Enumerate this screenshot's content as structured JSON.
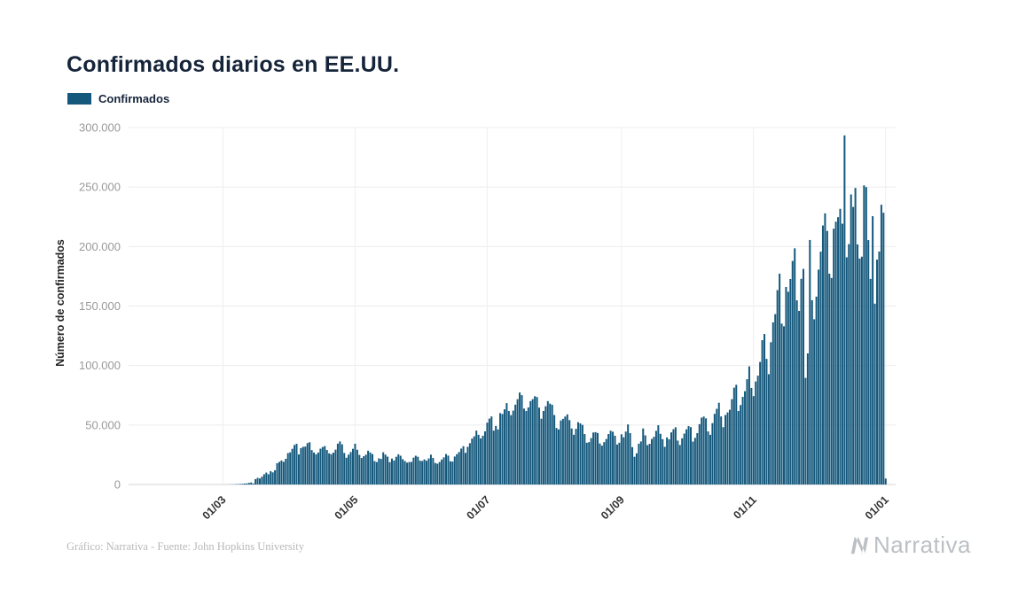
{
  "page": {
    "background": "#ffffff"
  },
  "header": {
    "title": "Confirmados diarios en EE.UU."
  },
  "legend": {
    "label": "Confirmados",
    "color": "#14587c"
  },
  "footer": {
    "credit": "Gráfico: Narrativa - Fuente: John Hopkins University",
    "brand": "Narrativa"
  },
  "chart_data": {
    "type": "bar",
    "title": "Confirmados diarios en EE.UU.",
    "xlabel": "",
    "ylabel": "Número de confirmados",
    "series_name": "Confirmados",
    "bar_color": "#14587c",
    "grid": true,
    "legend_position": "top-left",
    "ylim": [
      0,
      300000
    ],
    "y_ticks": [
      0,
      50000,
      100000,
      150000,
      200000,
      250000,
      300000
    ],
    "y_tick_labels": [
      "0",
      "50.000",
      "100.000",
      "150.000",
      "200.000",
      "250.000",
      "300.000"
    ],
    "x_ticks": [
      {
        "label": "01/03",
        "index": 39
      },
      {
        "label": "01/05",
        "index": 100
      },
      {
        "label": "01/07",
        "index": 161
      },
      {
        "label": "01/09",
        "index": 223
      },
      {
        "label": "01/11",
        "index": 284
      },
      {
        "label": "01/01",
        "index": 345
      }
    ],
    "values": [
      1,
      0,
      1,
      0,
      3,
      0,
      0,
      0,
      2,
      1,
      1,
      0,
      2,
      1,
      0,
      1,
      1,
      0,
      3,
      2,
      0,
      1,
      2,
      1,
      0,
      2,
      1,
      3,
      0,
      1,
      2,
      6,
      8,
      10,
      14,
      18,
      6,
      4,
      21,
      24,
      20,
      31,
      74,
      107,
      163,
      290,
      330,
      430,
      600,
      790,
      880,
      1360,
      1700,
      860,
      4530,
      5600,
      5100,
      6600,
      8600,
      10000,
      8600,
      11200,
      10200,
      12000,
      17900,
      19000,
      20200,
      19100,
      21600,
      26400,
      27000,
      30000,
      33200,
      34200,
      25300,
      30600,
      31700,
      31900,
      34800,
      35500,
      28900,
      26900,
      25400,
      26900,
      30100,
      31500,
      32300,
      29000,
      26200,
      25500,
      26800,
      29300,
      34300,
      36200,
      33800,
      26500,
      22500,
      25100,
      27300,
      30000,
      34300,
      29200,
      24900,
      22300,
      23800,
      25100,
      28400,
      26900,
      25600,
      19700,
      18900,
      22000,
      21500,
      27100,
      25200,
      23400,
      18800,
      21800,
      20200,
      23300,
      25400,
      24200,
      21300,
      19700,
      18400,
      18900,
      19000,
      22600,
      24200,
      23300,
      20000,
      19800,
      21100,
      20000,
      21900,
      25100,
      22300,
      18100,
      17500,
      18900,
      21000,
      22800,
      25600,
      24300,
      19500,
      19300,
      23500,
      25500,
      27300,
      30200,
      32200,
      26600,
      31700,
      34700,
      38600,
      40500,
      45300,
      41800,
      38700,
      41000,
      44700,
      52000,
      55400,
      57200,
      45300,
      49200,
      46300,
      60000,
      59300,
      63200,
      68400,
      61800,
      58300,
      62100,
      67100,
      71700,
      77300,
      75100,
      63800,
      61800,
      64800,
      70100,
      71700,
      74200,
      73500,
      64600,
      55300,
      61800,
      65800,
      70100,
      68000,
      67000,
      58400,
      47500,
      46300,
      53800,
      55200,
      57100,
      58900,
      54100,
      47100,
      41800,
      46800,
      52400,
      51400,
      50100,
      42400,
      35100,
      35600,
      39000,
      43700,
      44000,
      43300,
      34500,
      32700,
      35600,
      38300,
      42400,
      45200,
      44400,
      41000,
      33600,
      35100,
      42200,
      39700,
      44500,
      50500,
      43200,
      31400,
      23300,
      26200,
      34300,
      36200,
      47100,
      41300,
      33100,
      34200,
      38300,
      40100,
      45100,
      49800,
      42600,
      38100,
      31700,
      39600,
      38000,
      43800,
      46500,
      48100,
      36900,
      33200,
      38800,
      42800,
      46400,
      49100,
      48200,
      36100,
      39200,
      43200,
      50700,
      56200,
      57100,
      55600,
      44600,
      41800,
      51600,
      59400,
      63600,
      68700,
      57200,
      48200,
      58400,
      60600,
      62800,
      71700,
      81400,
      83800,
      61800,
      66800,
      73700,
      78400,
      88500,
      99300,
      81200,
      74300,
      86600,
      91500,
      103000,
      121300,
      126500,
      105600,
      92700,
      119600,
      136300,
      143200,
      163400,
      177200,
      135200,
      133000,
      166000,
      162000,
      172700,
      187900,
      198500,
      154800,
      145900,
      172900,
      181200,
      89600,
      110200,
      205500,
      154900,
      138900,
      157900,
      180600,
      195700,
      217700,
      227900,
      213100,
      177200,
      173600,
      215000,
      220900,
      224700,
      231700,
      219200,
      293400,
      191000,
      202000,
      243800,
      233300,
      249200,
      201800,
      189900,
      191500,
      251400,
      249900,
      205400,
      172800,
      225500,
      152000,
      189000,
      195800,
      235100,
      228400,
      5000
    ]
  }
}
